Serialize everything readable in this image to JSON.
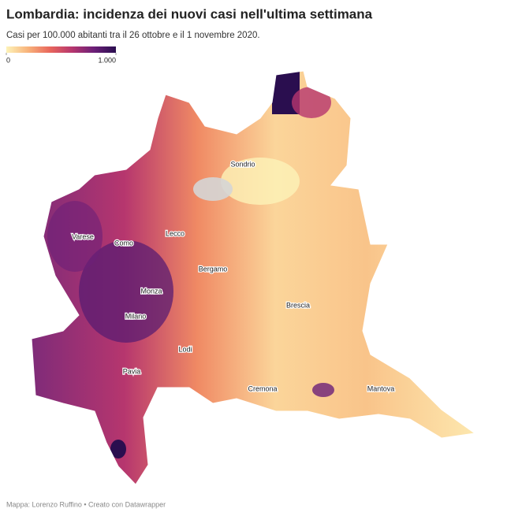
{
  "title": "Lombardia: incidenza dei nuovi casi nell'ultima settimana",
  "subtitle": "Casi per 100.000 abitanti tra il 26 ottobre e il 1 novembre 2020.",
  "legend": {
    "range": [
      0,
      1000
    ],
    "ticks": [
      0,
      {
        "value": 1000,
        "label": "1.000"
      }
    ],
    "colors": [
      "#fdf3b8",
      "#f8b27a",
      "#e8665c",
      "#b6366e",
      "#6c1f78",
      "#2a0e4f"
    ]
  },
  "labels": [
    "Sondrio",
    "Lecco",
    "Varese",
    "Como",
    "Bergamo",
    "Monza",
    "Brescia",
    "Milano",
    "Lodi",
    "Pavia",
    "Cremona",
    "Mantova"
  ],
  "credit": "Mappa: Lorenzo Ruffino • Creato con Datawrapper"
}
